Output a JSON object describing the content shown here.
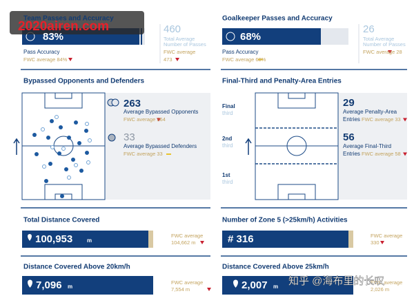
{
  "watermarks": {
    "site": "2020airen.com",
    "zhihu": "知乎 @海布里的长叹"
  },
  "team_passes": {
    "title": "Team Passes and Accuracy",
    "accuracy": "83%",
    "accuracy_label": "Pass Accuracy",
    "accuracy_avg": "FWC average 84%",
    "total": "460",
    "total_label_1": "Total Average",
    "total_label_2": "Number of Passes",
    "total_avg_label": "FWC average",
    "total_avg": "473"
  },
  "gk_passes": {
    "title": "Goalkeeper Passes and Accuracy",
    "accuracy": "68%",
    "accuracy_label": "Pass Accuracy",
    "accuracy_avg": "FWC average 68%",
    "total": "26",
    "total_label_1": "Total Average",
    "total_label_2": "Number of Passes",
    "total_avg": "FWC average 28"
  },
  "bypassed": {
    "title": "Bypassed Opponents and Defenders",
    "opponents": "263",
    "opponents_label": "Average Bypassed Opponents",
    "opponents_avg": "FWC average 264",
    "defenders": "33",
    "defenders_label": "Average Bypassed Defenders",
    "defenders_avg": "FWC average 33"
  },
  "entries": {
    "title": "Final-Third and Penalty-Area Entries",
    "zones": [
      [
        "Final",
        "third"
      ],
      [
        "2nd",
        "third"
      ],
      [
        "1st",
        "third"
      ]
    ],
    "penalty": "29",
    "penalty_label_1": "Average Penalty-Area",
    "penalty_label_2": "Entries",
    "penalty_avg": "FWC average 33",
    "final": "56",
    "final_label_1": "Average Final-Third",
    "final_label_2": "Entries",
    "final_avg": "FWC average 58"
  },
  "distance": {
    "title": "Total Distance Covered",
    "value": "100,953",
    "unit": "m",
    "avg_label": "FWC average",
    "avg": "104,662 m"
  },
  "zone5": {
    "title": "Number of Zone 5 (>25km/h) Activities",
    "value": "# 316",
    "avg_label": "FWC average",
    "avg": "330"
  },
  "above20": {
    "title": "Distance Covered Above 20km/h",
    "value": "7,096",
    "unit": "m",
    "avg_label": "FWC average",
    "avg": "7,554 m"
  },
  "above25": {
    "title": "Distance Covered Above 25km/h",
    "value": "2,007",
    "unit": "m",
    "avg_label": "FWC average",
    "avg": "2,026 m"
  }
}
